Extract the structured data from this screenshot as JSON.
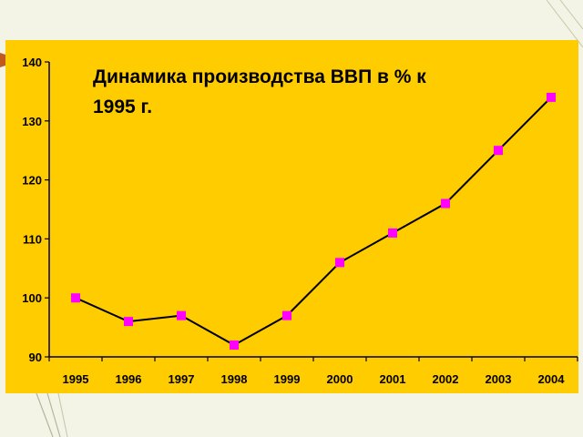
{
  "chart_data": {
    "type": "line",
    "title_lines": [
      "Динамика производства ВВП в % к",
      "1995 г."
    ],
    "xlabel": "",
    "ylabel": "",
    "categories": [
      "1995",
      "1996",
      "1997",
      "1998",
      "1999",
      "2000",
      "2001",
      "2002",
      "2003",
      "2004"
    ],
    "series": [
      {
        "values": [
          100,
          96,
          97,
          92,
          97,
          106,
          111,
          116,
          125,
          134
        ]
      }
    ],
    "ylim": [
      90,
      140
    ],
    "yticks": [
      "90",
      "100",
      "110",
      "120",
      "130",
      "140"
    ],
    "grid": false,
    "legend": "none",
    "colors": {
      "background": "#ffcc00",
      "line": "#000000",
      "marker": "#ff00ff"
    }
  }
}
